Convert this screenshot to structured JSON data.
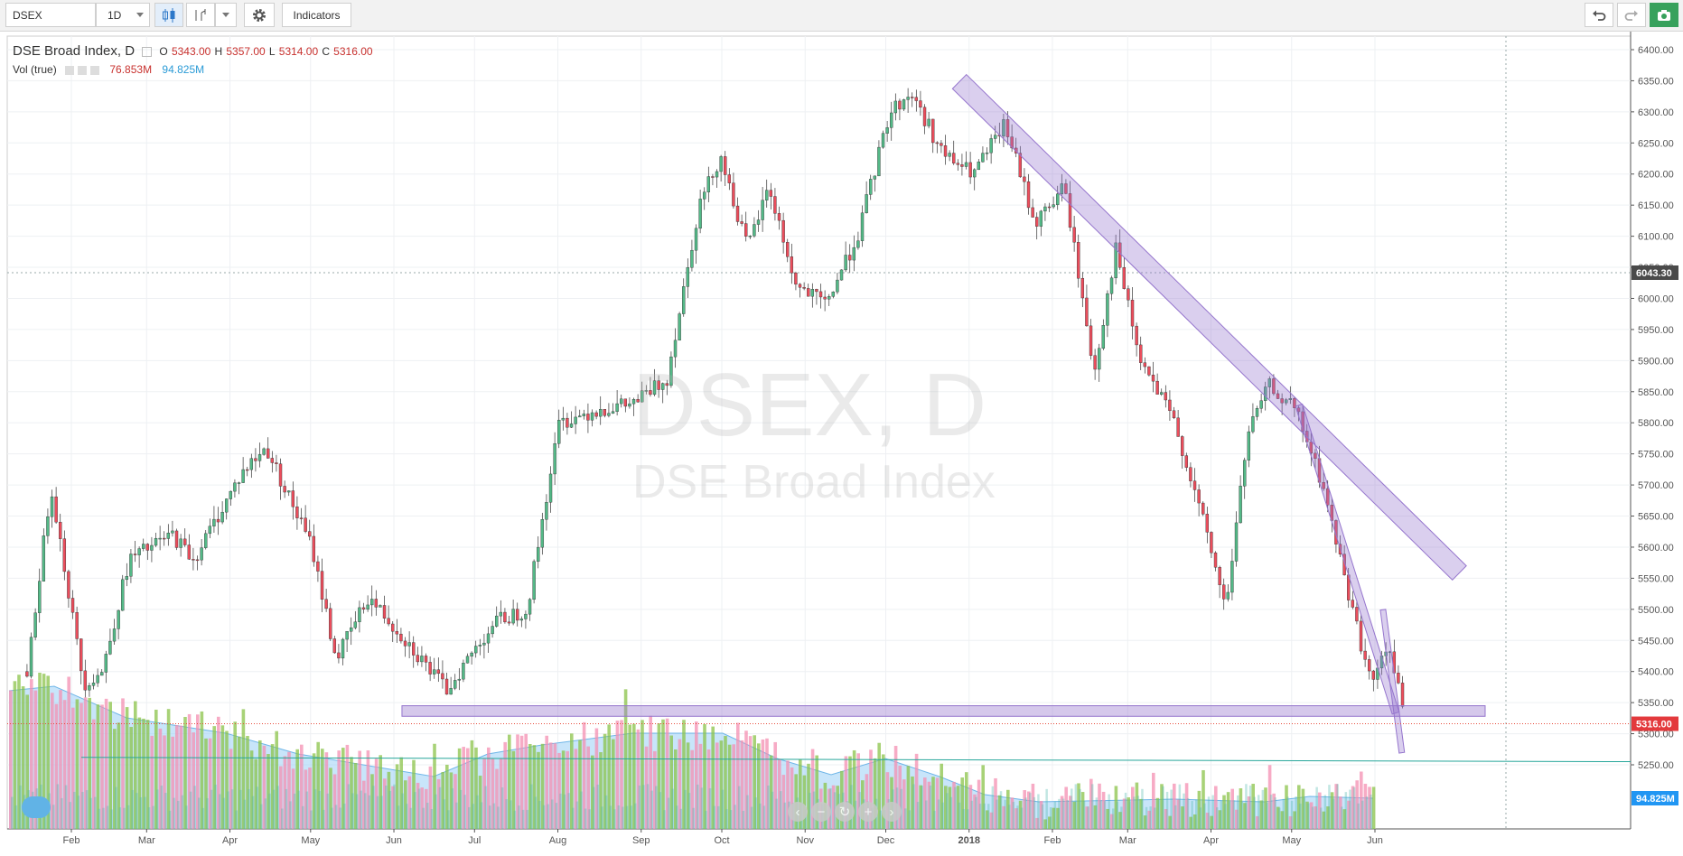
{
  "toolbar": {
    "symbol": "DSEX",
    "interval": "1D",
    "indicators_label": "Indicators",
    "icons": [
      "candles-icon",
      "compare-icon",
      "gear-icon",
      "undo-icon",
      "redo-icon",
      "camera-icon"
    ]
  },
  "legend": {
    "title": "DSE Broad Index, D",
    "o_label": "O",
    "o": "5343.00",
    "h_label": "H",
    "h": "5357.00",
    "l_label": "L",
    "l": "5314.00",
    "c_label": "C",
    "c": "5316.00",
    "vol_label": "Vol (true)",
    "vol_value": "76.853M",
    "vol_ma_value": "94.825M"
  },
  "watermark": {
    "line1": "DSEX, D",
    "line2": "DSE Broad Index"
  },
  "price_scale_labels": {
    "crosshair_price": "6043.30",
    "last_price": "5316.00",
    "volume_ma": "94.825M"
  },
  "chart_data": {
    "type": "candlestick",
    "title": "DSE Broad Index, D",
    "ylim": [
      5200,
      6410
    ],
    "yticks": [
      6400,
      6350,
      6300,
      6250,
      6200,
      6150,
      6100,
      6050,
      6000,
      5950,
      5900,
      5850,
      5800,
      5750,
      5700,
      5650,
      5600,
      5550,
      5500,
      5450,
      5400,
      5350,
      5300,
      5250
    ],
    "xticks": [
      "Feb",
      "Mar",
      "Apr",
      "May",
      "Jun",
      "Jul",
      "Aug",
      "Sep",
      "Oct",
      "Nov",
      "Dec",
      "2018",
      "Feb",
      "Mar",
      "Apr",
      "May",
      "Jun"
    ],
    "grid": true,
    "price_path": [
      [
        "2017-01-15",
        5400
      ],
      [
        "2017-01-24",
        5700
      ],
      [
        "2017-02-05",
        5380
      ],
      [
        "2017-02-12",
        5400
      ],
      [
        "2017-02-22",
        5580
      ],
      [
        "2017-03-10",
        5620
      ],
      [
        "2017-03-18",
        5580
      ],
      [
        "2017-04-05",
        5720
      ],
      [
        "2017-04-14",
        5760
      ],
      [
        "2017-05-01",
        5600
      ],
      [
        "2017-05-10",
        5420
      ],
      [
        "2017-05-22",
        5520
      ],
      [
        "2017-06-05",
        5450
      ],
      [
        "2017-06-20",
        5370
      ],
      [
        "2017-06-28",
        5420
      ],
      [
        "2017-07-08",
        5480
      ],
      [
        "2017-07-20",
        5500
      ],
      [
        "2017-08-01",
        5800
      ],
      [
        "2017-08-14",
        5820
      ],
      [
        "2017-08-28",
        5830
      ],
      [
        "2017-09-10",
        5870
      ],
      [
        "2017-09-22",
        6150
      ],
      [
        "2017-09-30",
        6230
      ],
      [
        "2017-10-10",
        6080
      ],
      [
        "2017-10-18",
        6180
      ],
      [
        "2017-10-28",
        6020
      ],
      [
        "2017-11-08",
        5990
      ],
      [
        "2017-11-20",
        6100
      ],
      [
        "2017-12-02",
        6300
      ],
      [
        "2017-12-10",
        6330
      ],
      [
        "2017-12-22",
        6230
      ],
      [
        "2018-01-02",
        6200
      ],
      [
        "2018-01-14",
        6280
      ],
      [
        "2018-01-25",
        6120
      ],
      [
        "2018-02-05",
        6180
      ],
      [
        "2018-02-16",
        5880
      ],
      [
        "2018-02-24",
        6080
      ],
      [
        "2018-03-05",
        5900
      ],
      [
        "2018-03-18",
        5800
      ],
      [
        "2018-03-30",
        5620
      ],
      [
        "2018-04-06",
        5500
      ],
      [
        "2018-04-14",
        5780
      ],
      [
        "2018-04-22",
        5860
      ],
      [
        "2018-05-02",
        5820
      ],
      [
        "2018-05-12",
        5700
      ],
      [
        "2018-05-22",
        5520
      ],
      [
        "2018-05-30",
        5380
      ],
      [
        "2018-06-06",
        5440
      ],
      [
        "2018-06-12",
        5316
      ]
    ],
    "ohlc_last": {
      "open": 5343.0,
      "high": 5357.0,
      "low": 5314.0,
      "close": 5316.0
    },
    "series": [
      {
        "name": "Vol (true)",
        "last": "76.853M"
      },
      {
        "name": "Volume MA",
        "last": "94.825M"
      }
    ],
    "annotations": [
      {
        "type": "channel",
        "from": [
          "2017-12-31",
          6360
        ],
        "to": [
          "2018-07-05",
          5570
        ],
        "color": "#9575cd"
      },
      {
        "type": "channel",
        "from": [
          "2018-05-05",
          5830
        ],
        "to": [
          "2018-06-10",
          5335
        ],
        "color": "#9575cd"
      },
      {
        "type": "channel",
        "from": [
          "2018-06-05",
          5500
        ],
        "to": [
          "2018-06-12",
          5270
        ],
        "color": "#9575cd"
      },
      {
        "type": "horizontal_band",
        "from": [
          "2017-06-04",
          5345
        ],
        "to": [
          "2018-07-12",
          5328
        ],
        "color": "#9575cd"
      },
      {
        "type": "trend_line",
        "y": [
          5262,
          5255
        ],
        "color": "#26a69a"
      }
    ],
    "colors": {
      "up": "#53b987",
      "down": "#eb4d5c",
      "volume_up": "#8bc34a",
      "volume_down": "#f48fb1",
      "volume_ma_fill": "#9ad0f5",
      "annotation": "#9575cd"
    }
  }
}
